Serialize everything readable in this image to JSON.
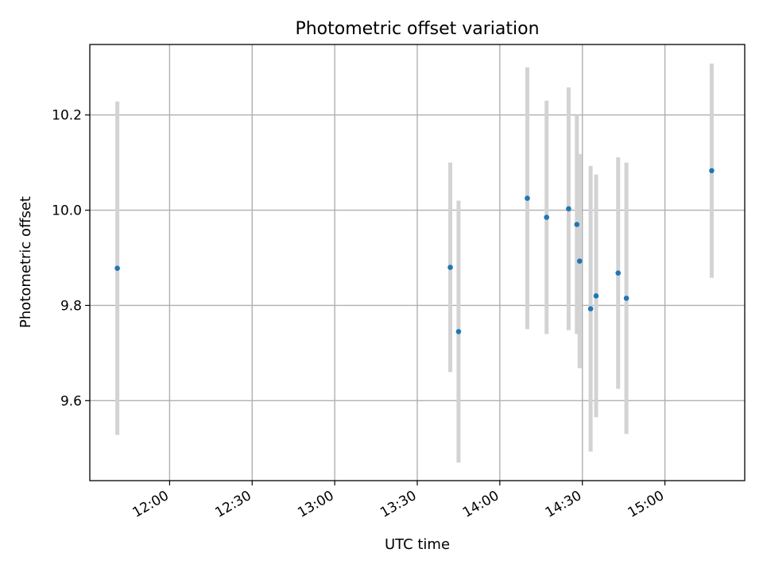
{
  "chart_data": {
    "type": "scatter",
    "title": "Photometric offset variation",
    "xlabel": "UTC time",
    "ylabel": "Photometric offset",
    "x_axis_type": "time",
    "xlim": [
      "11:31",
      "15:29"
    ],
    "ylim": [
      9.432,
      10.348
    ],
    "grid": true,
    "x_ticks": [
      "12:00",
      "12:30",
      "13:00",
      "13:30",
      "14:00",
      "14:30",
      "15:00"
    ],
    "y_ticks": [
      9.6,
      9.8,
      10.0,
      10.2
    ],
    "y_tick_labels": [
      "9.6",
      "9.8",
      "10.0",
      "10.2"
    ],
    "point_color": "#1f77b4",
    "errorbar_color": "#d3d3d3",
    "series": [
      {
        "points": [
          {
            "x": "11:41",
            "y": 9.878,
            "yerr": 0.35
          },
          {
            "x": "13:42",
            "y": 9.88,
            "yerr": 0.22
          },
          {
            "x": "13:45",
            "y": 9.745,
            "yerr": 0.275
          },
          {
            "x": "14:10",
            "y": 10.025,
            "yerr": 0.275
          },
          {
            "x": "14:17",
            "y": 9.985,
            "yerr": 0.245
          },
          {
            "x": "14:25",
            "y": 10.003,
            "yerr": 0.255
          },
          {
            "x": "14:28",
            "y": 9.97,
            "yerr": 0.23
          },
          {
            "x": "14:29",
            "y": 9.893,
            "yerr": 0.225
          },
          {
            "x": "14:33",
            "y": 9.793,
            "yerr": 0.3
          },
          {
            "x": "14:35",
            "y": 9.82,
            "yerr": 0.255
          },
          {
            "x": "14:43",
            "y": 9.868,
            "yerr": 0.243
          },
          {
            "x": "14:46",
            "y": 9.815,
            "yerr": 0.285
          },
          {
            "x": "15:17",
            "y": 10.083,
            "yerr": 0.225
          }
        ]
      }
    ]
  }
}
